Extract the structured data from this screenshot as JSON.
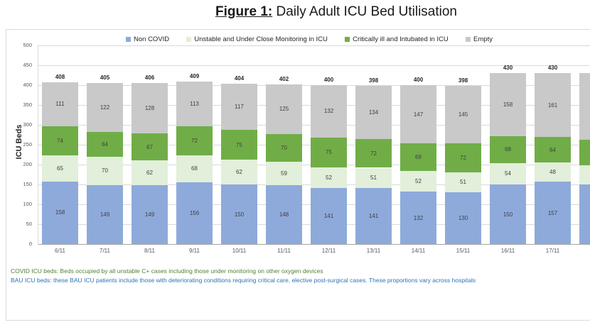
{
  "title": {
    "prefix": "Figure 1:",
    "rest": " Daily Adult ICU Bed Utilisation"
  },
  "chart_data": {
    "type": "stacked-bar",
    "title": "Daily Adult ICU Bed Utilisation",
    "ylabel": "ICU Beds",
    "ylim": [
      0,
      500
    ],
    "ytick_step": 50,
    "grid": true,
    "legend_position": "top",
    "categories": [
      "6/11",
      "7/11",
      "8/11",
      "9/11",
      "10/11",
      "11/11",
      "12/11",
      "13/11",
      "14/11",
      "15/11",
      "16/11",
      "17/11"
    ],
    "series": [
      {
        "name": "Non COVID",
        "color": "#8EAADB",
        "values": [
          158,
          149,
          149,
          156,
          150,
          148,
          141,
          141,
          132,
          130,
          150,
          157
        ]
      },
      {
        "name": "Unstable and Under Close Monitoring in ICU",
        "color": "#E2EFDA",
        "values": [
          65,
          70,
          62,
          68,
          62,
          59,
          52,
          51,
          52,
          51,
          54,
          48
        ]
      },
      {
        "name": "Critically ill and Intubated in ICU",
        "color": "#70AD47",
        "values": [
          74,
          64,
          67,
          72,
          75,
          70,
          75,
          72,
          69,
          72,
          68,
          64
        ]
      },
      {
        "name": "Empty",
        "color": "#C9C9C9",
        "values": [
          111,
          122,
          128,
          113,
          117,
          125,
          132,
          134,
          147,
          145,
          158,
          161
        ]
      }
    ],
    "totals": [
      408,
      405,
      406,
      409,
      404,
      402,
      400,
      398,
      400,
      398,
      430,
      430
    ],
    "partial_bar_estimated": {
      "values": [
        150,
        48,
        64,
        168
      ],
      "show_labels": false
    }
  },
  "footnotes": [
    {
      "text": "COVID ICU beds: Beds occupied by all unstable C+ cases including those under monitoring on other oxygen devices",
      "color": "#538135"
    },
    {
      "text": "BAU ICU beds: these BAU ICU patients include those with deteriorating conditions requiring critical care, elective post-surgical cases. These proportions vary across hospitals",
      "color": "#2E74B5"
    }
  ]
}
